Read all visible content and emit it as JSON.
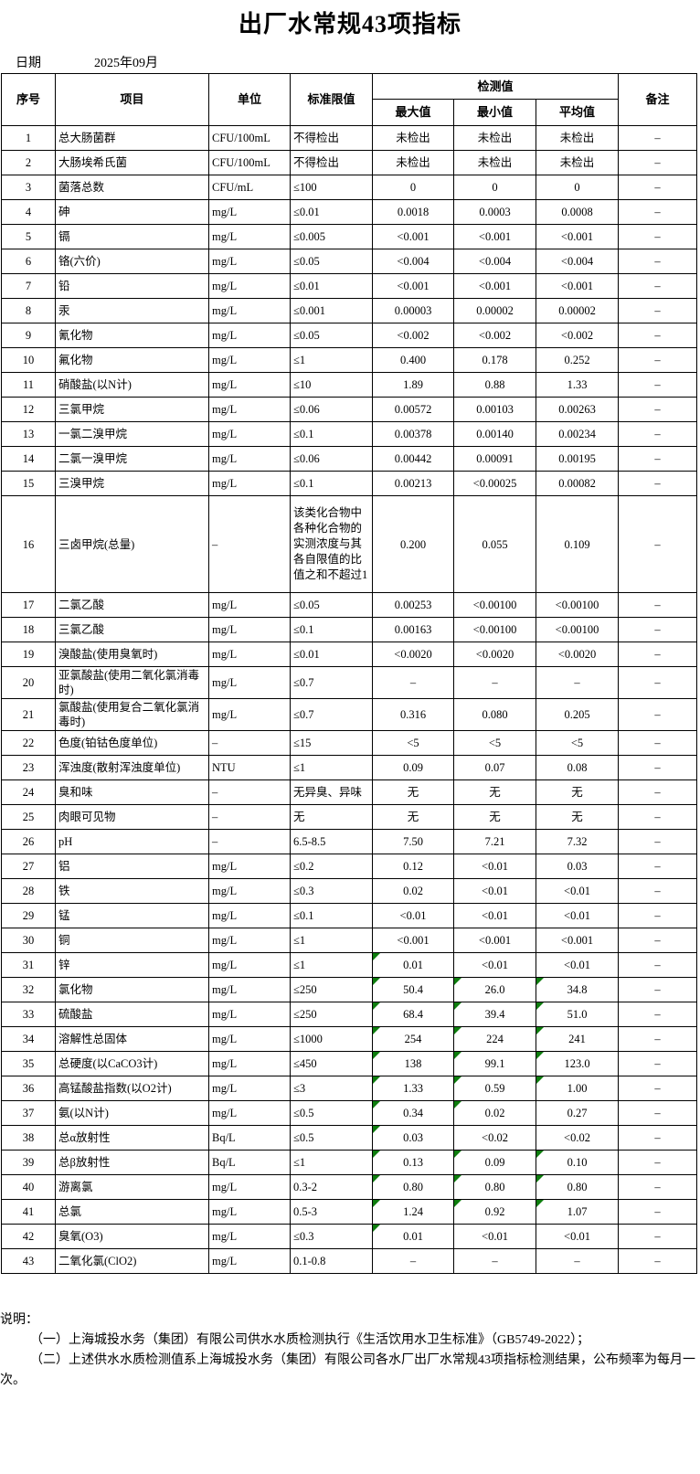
{
  "title": "出厂水常规43项指标",
  "date": {
    "label": "日期",
    "value": "2025年09月"
  },
  "colors": {
    "border": "#000000",
    "error_indicator": "#0e7d0e",
    "background": "#ffffff",
    "text": "#000000"
  },
  "table": {
    "headers": {
      "no": "序号",
      "item": "项目",
      "unit": "单位",
      "limit": "标准限值",
      "detect": "检测值",
      "max": "最大值",
      "min": "最小值",
      "avg": "平均值",
      "remark": "备注"
    },
    "rows": [
      {
        "no": "1",
        "item": "总大肠菌群",
        "unit": "CFU/100mL",
        "limit": "不得检出",
        "max": "未检出",
        "min": "未检出",
        "avg": "未检出",
        "remark": "–"
      },
      {
        "no": "2",
        "item": "大肠埃希氏菌",
        "unit": "CFU/100mL",
        "limit": "不得检出",
        "max": "未检出",
        "min": "未检出",
        "avg": "未检出",
        "remark": "–"
      },
      {
        "no": "3",
        "item": "菌落总数",
        "unit": "CFU/mL",
        "limit": "≤100",
        "max": "0",
        "min": "0",
        "avg": "0",
        "remark": "–"
      },
      {
        "no": "4",
        "item": "砷",
        "unit": "mg/L",
        "limit": "≤0.01",
        "max": "0.0018",
        "min": "0.0003",
        "avg": "0.0008",
        "remark": "–"
      },
      {
        "no": "5",
        "item": "镉",
        "unit": "mg/L",
        "limit": "≤0.005",
        "max": "<0.001",
        "min": "<0.001",
        "avg": "<0.001",
        "remark": "–"
      },
      {
        "no": "6",
        "item": "铬(六价)",
        "unit": "mg/L",
        "limit": "≤0.05",
        "max": "<0.004",
        "min": "<0.004",
        "avg": "<0.004",
        "remark": "–"
      },
      {
        "no": "7",
        "item": "铅",
        "unit": "mg/L",
        "limit": "≤0.01",
        "max": "<0.001",
        "min": "<0.001",
        "avg": "<0.001",
        "remark": "–"
      },
      {
        "no": "8",
        "item": "汞",
        "unit": "mg/L",
        "limit": "≤0.001",
        "max": "0.00003",
        "min": "0.00002",
        "avg": "0.00002",
        "remark": "–"
      },
      {
        "no": "9",
        "item": "氰化物",
        "unit": "mg/L",
        "limit": "≤0.05",
        "max": "<0.002",
        "min": "<0.002",
        "avg": "<0.002",
        "remark": "–"
      },
      {
        "no": "10",
        "item": "氟化物",
        "unit": "mg/L",
        "limit": "≤1",
        "max": "0.400",
        "min": "0.178",
        "avg": "0.252",
        "remark": "–"
      },
      {
        "no": "11",
        "item": "硝酸盐(以N计)",
        "unit": "mg/L",
        "limit": "≤10",
        "max": "1.89",
        "min": "0.88",
        "avg": "1.33",
        "remark": "–"
      },
      {
        "no": "12",
        "item": "三氯甲烷",
        "unit": "mg/L",
        "limit": "≤0.06",
        "max": "0.00572",
        "min": "0.00103",
        "avg": "0.00263",
        "remark": "–"
      },
      {
        "no": "13",
        "item": "一氯二溴甲烷",
        "unit": "mg/L",
        "limit": "≤0.1",
        "max": "0.00378",
        "min": "0.00140",
        "avg": "0.00234",
        "remark": "–"
      },
      {
        "no": "14",
        "item": "二氯一溴甲烷",
        "unit": "mg/L",
        "limit": "≤0.06",
        "max": "0.00442",
        "min": "0.00091",
        "avg": "0.00195",
        "remark": "–"
      },
      {
        "no": "15",
        "item": "三溴甲烷",
        "unit": "mg/L",
        "limit": "≤0.1",
        "max": "0.00213",
        "min": "<0.00025",
        "avg": "0.00082",
        "remark": "–"
      },
      {
        "no": "16",
        "item": "三卤甲烷(总量)",
        "unit": "–",
        "limit": "该类化合物中各种化合物的实测浓度与其各自限值的比值之和不超过1",
        "max": "0.200",
        "min": "0.055",
        "avg": "0.109",
        "remark": "–"
      },
      {
        "no": "17",
        "item": "二氯乙酸",
        "unit": "mg/L",
        "limit": "≤0.05",
        "max": "0.00253",
        "min": "<0.00100",
        "avg": "<0.00100",
        "remark": "–"
      },
      {
        "no": "18",
        "item": "三氯乙酸",
        "unit": "mg/L",
        "limit": "≤0.1",
        "max": "0.00163",
        "min": "<0.00100",
        "avg": "<0.00100",
        "remark": "–"
      },
      {
        "no": "19",
        "item": "溴酸盐(使用臭氧时)",
        "unit": "mg/L",
        "limit": "≤0.01",
        "max": "<0.0020",
        "min": "<0.0020",
        "avg": "<0.0020",
        "remark": "–"
      },
      {
        "no": "20",
        "item": "亚氯酸盐(使用二氧化氯消毒时)",
        "unit": "mg/L",
        "limit": "≤0.7",
        "max": "–",
        "min": "–",
        "avg": "–",
        "remark": "–"
      },
      {
        "no": "21",
        "item": "氯酸盐(使用复合二氧化氯消毒时)",
        "unit": "mg/L",
        "limit": "≤0.7",
        "max": "0.316",
        "min": "0.080",
        "avg": "0.205",
        "remark": "–"
      },
      {
        "no": "22",
        "item": "色度(铂钴色度单位)",
        "unit": "–",
        "limit": "≤15",
        "max": "<5",
        "min": "<5",
        "avg": "<5",
        "remark": "–"
      },
      {
        "no": "23",
        "item": "浑浊度(散射浑浊度单位)",
        "unit": "NTU",
        "limit": "≤1",
        "max": "0.09",
        "min": "0.07",
        "avg": "0.08",
        "remark": "–"
      },
      {
        "no": "24",
        "item": "臭和味",
        "unit": "–",
        "limit": "无异臭、异味",
        "max": "无",
        "min": "无",
        "avg": "无",
        "remark": "–"
      },
      {
        "no": "25",
        "item": "肉眼可见物",
        "unit": "–",
        "limit": "无",
        "max": "无",
        "min": "无",
        "avg": "无",
        "remark": "–"
      },
      {
        "no": "26",
        "item": "pH",
        "unit": "–",
        "limit": "6.5-8.5",
        "max": "7.50",
        "min": "7.21",
        "avg": "7.32",
        "remark": "–"
      },
      {
        "no": "27",
        "item": "铝",
        "unit": "mg/L",
        "limit": "≤0.2",
        "max": "0.12",
        "min": "<0.01",
        "avg": "0.03",
        "remark": "–"
      },
      {
        "no": "28",
        "item": "铁",
        "unit": "mg/L",
        "limit": "≤0.3",
        "max": "0.02",
        "min": "<0.01",
        "avg": "<0.01",
        "remark": "–"
      },
      {
        "no": "29",
        "item": "锰",
        "unit": "mg/L",
        "limit": "≤0.1",
        "max": "<0.01",
        "min": "<0.01",
        "avg": "<0.01",
        "remark": "–"
      },
      {
        "no": "30",
        "item": "铜",
        "unit": "mg/L",
        "limit": "≤1",
        "max": "<0.001",
        "min": "<0.001",
        "avg": "<0.001",
        "remark": "–"
      },
      {
        "no": "31",
        "item": "锌",
        "unit": "mg/L",
        "limit": "≤1",
        "max": "0.01",
        "min": "<0.01",
        "avg": "<0.01",
        "remark": "–",
        "tri": [
          "max"
        ]
      },
      {
        "no": "32",
        "item": "氯化物",
        "unit": "mg/L",
        "limit": "≤250",
        "max": "50.4",
        "min": "26.0",
        "avg": "34.8",
        "remark": "–",
        "tri": [
          "max",
          "min",
          "avg"
        ]
      },
      {
        "no": "33",
        "item": "硫酸盐",
        "unit": "mg/L",
        "limit": "≤250",
        "max": "68.4",
        "min": "39.4",
        "avg": "51.0",
        "remark": "–",
        "tri": [
          "max",
          "min",
          "avg"
        ]
      },
      {
        "no": "34",
        "item": "溶解性总固体",
        "unit": "mg/L",
        "limit": "≤1000",
        "max": "254",
        "min": "224",
        "avg": "241",
        "remark": "–",
        "tri": [
          "max",
          "min",
          "avg"
        ]
      },
      {
        "no": "35",
        "item": "总硬度(以CaCO3计)",
        "unit": "mg/L",
        "limit": "≤450",
        "max": "138",
        "min": "99.1",
        "avg": "123.0",
        "remark": "–",
        "tri": [
          "max",
          "min",
          "avg"
        ]
      },
      {
        "no": "36",
        "item": "高锰酸盐指数(以O2计)",
        "unit": "mg/L",
        "limit": "≤3",
        "max": "1.33",
        "min": "0.59",
        "avg": "1.00",
        "remark": "–",
        "tri": [
          "max",
          "min",
          "avg"
        ]
      },
      {
        "no": "37",
        "item": "氨(以N计)",
        "unit": "mg/L",
        "limit": "≤0.5",
        "max": "0.34",
        "min": "0.02",
        "avg": "0.27",
        "remark": "–",
        "tri": [
          "max",
          "min"
        ]
      },
      {
        "no": "38",
        "item": "总α放射性",
        "unit": "Bq/L",
        "limit": "≤0.5",
        "max": "0.03",
        "min": "<0.02",
        "avg": "<0.02",
        "remark": "–",
        "tri": [
          "max"
        ]
      },
      {
        "no": "39",
        "item": "总β放射性",
        "unit": "Bq/L",
        "limit": "≤1",
        "max": "0.13",
        "min": "0.09",
        "avg": "0.10",
        "remark": "–",
        "tri": [
          "max",
          "min",
          "avg"
        ]
      },
      {
        "no": "40",
        "item": "游离氯",
        "unit": "mg/L",
        "limit": "0.3-2",
        "max": "0.80",
        "min": "0.80",
        "avg": "0.80",
        "remark": "–",
        "tri": [
          "max",
          "min",
          "avg"
        ]
      },
      {
        "no": "41",
        "item": "总氯",
        "unit": "mg/L",
        "limit": "0.5-3",
        "max": "1.24",
        "min": "0.92",
        "avg": "1.07",
        "remark": "–",
        "tri": [
          "max",
          "min",
          "avg"
        ]
      },
      {
        "no": "42",
        "item": "臭氧(O3)",
        "unit": "mg/L",
        "limit": "≤0.3",
        "max": "0.01",
        "min": "<0.01",
        "avg": "<0.01",
        "remark": "–",
        "tri": [
          "max"
        ]
      },
      {
        "no": "43",
        "item": "二氧化氯(ClO2)",
        "unit": "mg/L",
        "limit": "0.1-0.8",
        "max": "–",
        "min": "–",
        "avg": "–",
        "remark": "–"
      }
    ]
  },
  "notes": {
    "heading": "说明：",
    "lines": [
      "（一）上海城投水务（集团）有限公司供水水质检测执行《生活饮用水卫生标准》（GB5749-2022）；",
      "（二）上述供水水质检测值系上海城投水务（集团）有限公司各水厂出厂水常规43项指标检测结果，公布频率为每月一次。"
    ]
  }
}
